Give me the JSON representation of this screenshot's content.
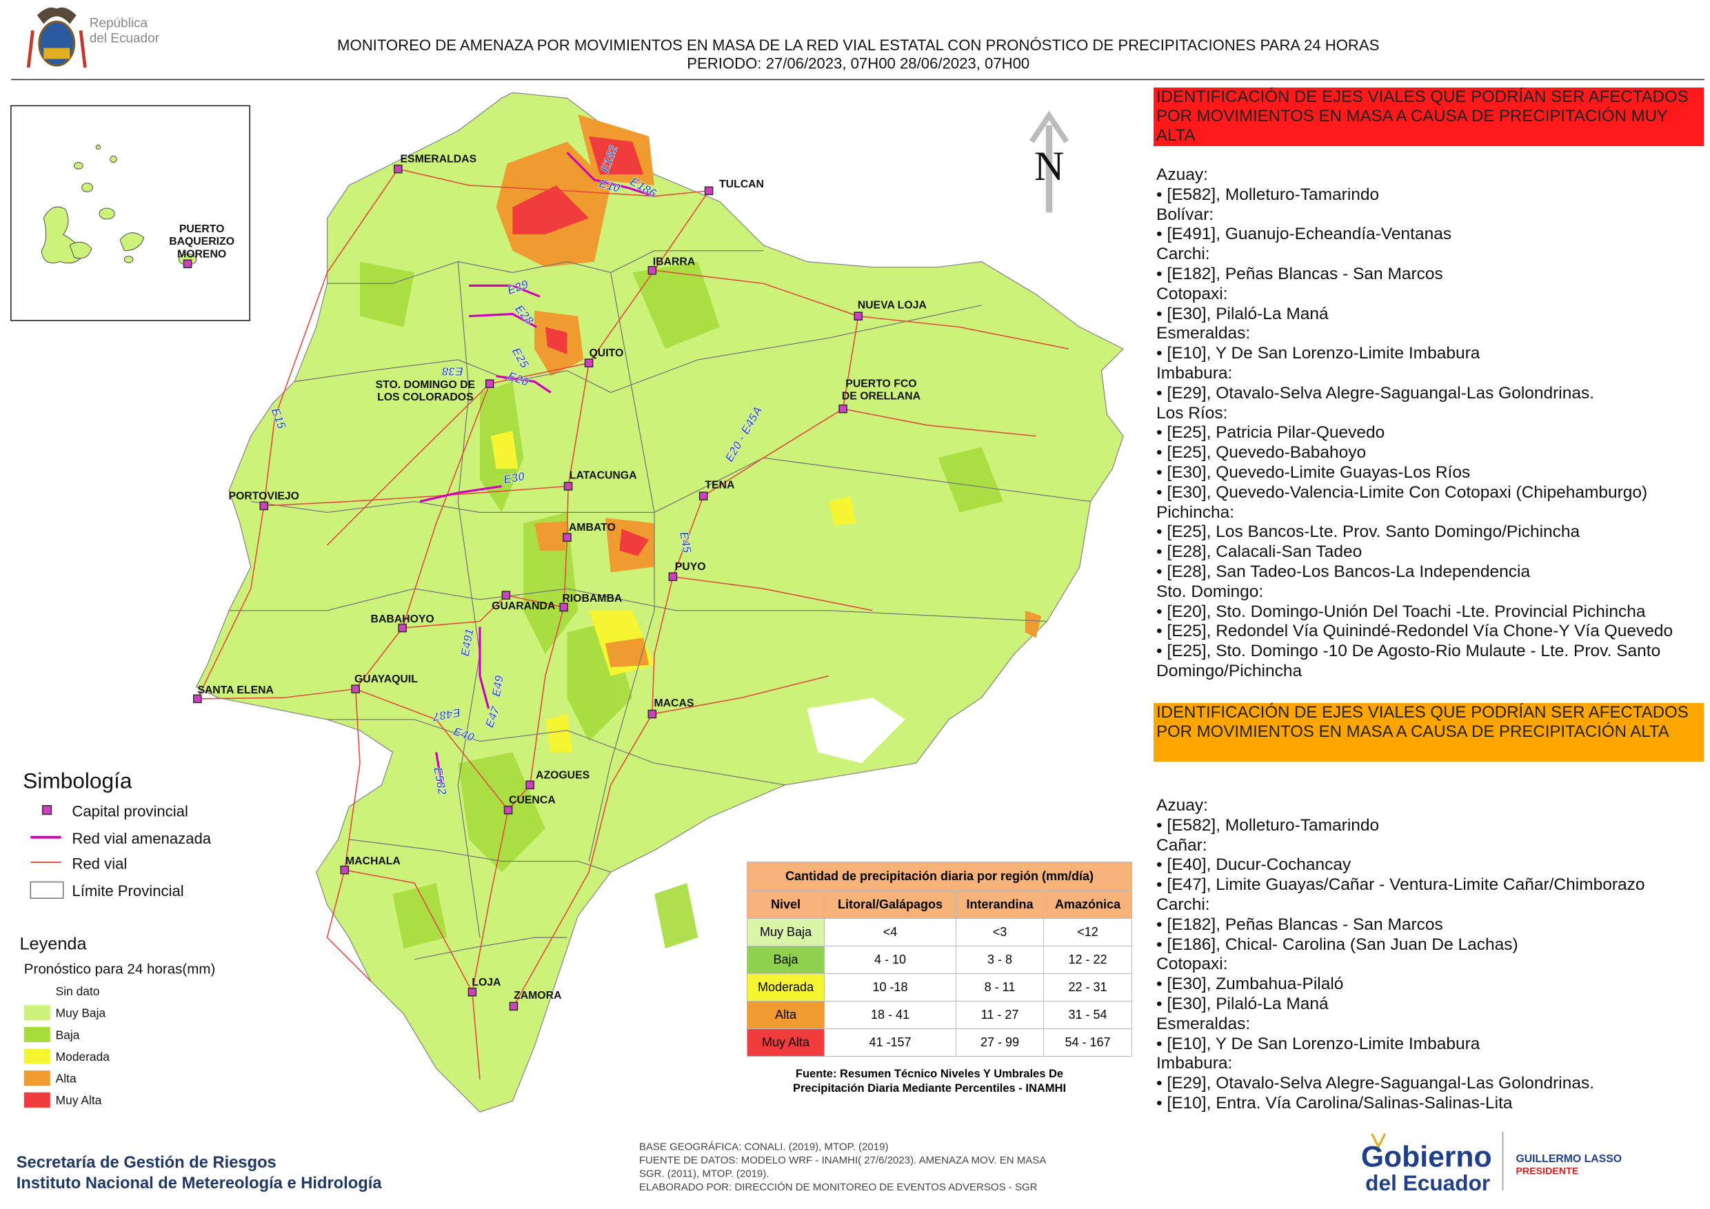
{
  "header": {
    "country": [
      "República",
      "del Ecuador"
    ],
    "title": "MONITOREO DE AMENAZA POR MOVIMIENTOS EN MASA DE LA RED VIAL  ESTATAL  CON PRONÓSTICO  DE  PRECIPITACIONES PARA 24 HORAS",
    "period": "PERIODO: 27/06/2023, 07H00 28/06/2023, 07H00"
  },
  "map": {
    "north": "N",
    "cities": [
      {
        "lines": [
          "ESMERALDAS"
        ]
      },
      {
        "lines": [
          "TULCAN"
        ]
      },
      {
        "lines": [
          "IBARRA"
        ]
      },
      {
        "lines": [
          "NUEVA LOJA"
        ]
      },
      {
        "lines": [
          "QUITO"
        ]
      },
      {
        "lines": [
          "STO. DOMINGO DE",
          "LOS COLORADOS"
        ]
      },
      {
        "lines": [
          "PUERTO FCO",
          "DE ORELLANA"
        ]
      },
      {
        "lines": [
          "PORTOVIEJO"
        ]
      },
      {
        "lines": [
          "LATACUNGA"
        ]
      },
      {
        "lines": [
          "TENA"
        ]
      },
      {
        "lines": [
          "AMBATO"
        ]
      },
      {
        "lines": [
          "PUYO"
        ]
      },
      {
        "lines": [
          "GUARANDA"
        ]
      },
      {
        "lines": [
          "RIOBAMBA"
        ]
      },
      {
        "lines": [
          "BABAHOYO"
        ]
      },
      {
        "lines": [
          "GUAYAQUIL"
        ]
      },
      {
        "lines": [
          "SANTA ELENA"
        ]
      },
      {
        "lines": [
          "MACAS"
        ]
      },
      {
        "lines": [
          "AZOGUES"
        ]
      },
      {
        "lines": [
          "CUENCA"
        ]
      },
      {
        "lines": [
          "MACHALA"
        ]
      },
      {
        "lines": [
          "LOJA"
        ]
      },
      {
        "lines": [
          "ZAMORA"
        ]
      },
      {
        "lines": [
          "PUERTO",
          "BAQUERIZO",
          "MORENO"
        ]
      }
    ],
    "roads": [
      "E10",
      "E182",
      "E186",
      "E29",
      "E28",
      "E25",
      "E38",
      "E20",
      "E15",
      "E20 - E45A",
      "E30",
      "E45",
      "E491",
      "E49",
      "E487",
      "E47",
      "E40",
      "E582"
    ]
  },
  "symbology": {
    "title": "Simbología",
    "items": [
      "Capital provincial",
      "Red vial amenazada",
      "Red vial",
      "Límite Provincial"
    ]
  },
  "legend": {
    "title": "Leyenda",
    "subtitle": "Pronóstico para 24 horas(mm)",
    "items": [
      {
        "label": "Sin dato"
      },
      {
        "label": "Muy Baja",
        "color": "#ccf27a"
      },
      {
        "label": "Baja",
        "color": "#a6dc3c"
      },
      {
        "label": "Moderada",
        "color": "#f5f532"
      },
      {
        "label": "Alta",
        "color": "#ef9b30"
      },
      {
        "label": "Muy Alta",
        "color": "#f03c3c"
      }
    ]
  },
  "precipitation_table": {
    "title": "Cantidad de precipitación diaria por región (mm/día)",
    "header": [
      "Nivel",
      "Litoral/Galápagos",
      "Interandina",
      "Amazónica"
    ],
    "rows": [
      [
        "Muy Baja",
        "<4",
        "<3",
        "<12"
      ],
      [
        "Baja",
        "4 - 10",
        "3 - 8",
        "12 - 22"
      ],
      [
        "Moderada",
        "10 -18",
        "8 - 11",
        "22 - 31"
      ],
      [
        "Alta",
        "18 - 41",
        "11 - 27",
        "31 - 54"
      ],
      [
        "Muy Alta",
        "41 -157",
        "27 - 99",
        "54 - 167"
      ]
    ],
    "row_colors": [
      "#d8f5a8",
      "#8fd14f",
      "#f5f532",
      "#ef9b30",
      "#f03c3c"
    ],
    "source": [
      "Fuente: Resumen Técnico Niveles Y Umbrales De",
      "Precipitación Diaria Mediante Percentiles - INAMHI"
    ]
  },
  "very_high_panel": {
    "heading": "IDENTIFICACIÓN DE EJES VIALES QUE PODRÍAN SER AFECTADOS POR MOVIMIENTOS EN MASA A CAUSA DE PRECIPITACIÓN MUY ALTA",
    "color": "#fe1a1a",
    "groups": [
      {
        "province": "Azuay:",
        "items": [
          "• [E582], Molleturo-Tamarindo"
        ]
      },
      {
        "province": "Bolívar:",
        "items": [
          "• [E491], Guanujo-Echeandía-Ventanas"
        ]
      },
      {
        "province": "Carchi:",
        "items": [
          "• [E182], Peñas Blancas - San Marcos"
        ]
      },
      {
        "province": "Cotopaxi:",
        "items": [
          "• [E30], Pilaló-La Maná"
        ]
      },
      {
        "province": "Esmeraldas:",
        "items": [
          "• [E10], Y De San Lorenzo-Limite Imbabura"
        ]
      },
      {
        "province": "Imbabura:",
        "items": [
          "• [E29], Otavalo-Selva Alegre-Saguangal-Las Golondrinas."
        ]
      },
      {
        "province": "Los Ríos:",
        "items": [
          "• [E25], Patricia Pilar-Quevedo",
          "• [E25], Quevedo-Babahoyo",
          "• [E30], Quevedo-Limite Guayas-Los Ríos",
          "• [E30], Quevedo-Valencia-Limite Con Cotopaxi (Chipehamburgo)"
        ]
      },
      {
        "province": "Pichincha:",
        "items": [
          "• [E25], Los Bancos-Lte. Prov. Santo Domingo/Pichincha",
          "• [E28], Calacali-San Tadeo",
          "• [E28], San Tadeo-Los Bancos-La Independencia"
        ]
      },
      {
        "province": "Sto. Domingo:",
        "items": [
          "• [E20], Sto. Domingo-Unión Del Toachi -Lte. Provincial Pichincha",
          "• [E25], Redondel Vía Quinindé-Redondel Vía Chone-Y Vía Quevedo",
          "• [E25], Sto. Domingo -10 De Agosto-Rio Mulaute - Lte. Prov. Santo Domingo/Pichincha"
        ]
      }
    ]
  },
  "high_panel": {
    "heading": "IDENTIFICACIÓN DE EJES VIALES QUE PODRÍAN SER AFECTADOS POR MOVIMIENTOS EN MASA A CAUSA DE PRECIPITACIÓN  ALTA",
    "color": "#ffa500",
    "groups": [
      {
        "province": "Azuay:",
        "items": [
          "• [E582], Molleturo-Tamarindo"
        ]
      },
      {
        "province": "Cañar:",
        "items": [
          "• [E40], Ducur-Cochancay",
          "• [E47], Limite Guayas/Cañar - Ventura-Limite Cañar/Chimborazo"
        ]
      },
      {
        "province": "Carchi:",
        "items": [
          "• [E182], Peñas Blancas - San Marcos",
          "• [E186], Chical- Carolina (San Juan De Lachas)"
        ]
      },
      {
        "province": "Cotopaxi:",
        "items": [
          "• [E30], Zumbahua-Pilaló",
          "• [E30], Pilaló-La Maná"
        ]
      },
      {
        "province": "Esmeraldas:",
        "items": [
          "• [E10], Y De San Lorenzo-Limite Imbabura"
        ]
      },
      {
        "province": "Imbabura:",
        "items": [
          "• [E29], Otavalo-Selva Alegre-Saguangal-Las Golondrinas.",
          "• [E10], Entra. Vía Carolina/Salinas-Salinas-Lita"
        ]
      }
    ]
  },
  "footer": {
    "institutions": [
      "Secretaría de Gestión de Riesgos",
      "Instituto Nacional de Metereología e Hidrología"
    ],
    "credits": [
      "BASE GEOGRÁFICA: CONALI. (2019), MTOP. (2019)",
      "FUENTE DE DATOS: MODELO WRF - INAMHI( 27/6/2023).  AMENAZA MOV. EN MASA",
      "SGR. (2011), MTOP. (2019).",
      "ELABORADO POR: DIRECCIÓN DE MONITOREO DE EVENTOS ADVERSOS - SGR"
    ],
    "government": [
      "Gobierno",
      "del Ecuador"
    ],
    "president": [
      "GUILLERMO LASSO",
      "PRESIDENTE"
    ]
  }
}
